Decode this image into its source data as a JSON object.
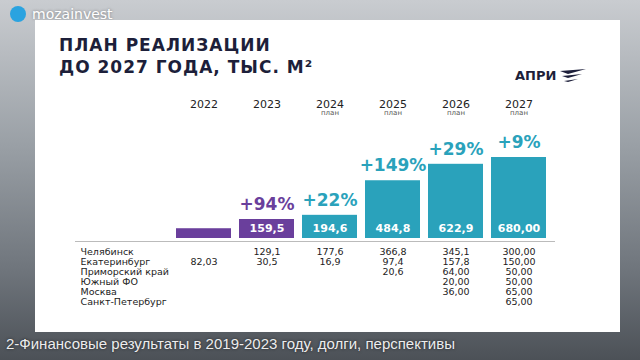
{
  "chart_data": {
    "type": "bar",
    "title": "ПЛАН РЕАЛИЗАЦИИ\nДО 2027 ГОДА, ТЫС. М²",
    "logo": "АПРИ",
    "watermark": "mozainvest",
    "caption": "2-Финансовые результаты в 2019-2023 году, долги, перспективы",
    "categories": [
      "2022",
      "2023",
      "2024",
      "2025",
      "2026",
      "2027"
    ],
    "period_notes": [
      null,
      null,
      "план",
      "план",
      "план",
      "план"
    ],
    "values": [
      82.03,
      159.5,
      194.6,
      484.8,
      622.9,
      680.0
    ],
    "value_labels": [
      null,
      "159,5",
      "194,6",
      "484,8",
      "622,9",
      "680,00"
    ],
    "growth_labels": [
      null,
      "+94%",
      "+22%",
      "+149%",
      "+29%",
      "+9%"
    ],
    "colors": [
      "#6a3f9c",
      "#6a3f9c",
      "#2aa2bb",
      "#2aa2bb",
      "#2aa2bb",
      "#2aa2bb"
    ],
    "ylim": [
      0,
      680
    ],
    "tick_labels": false,
    "grid": false,
    "data_labels": true,
    "table": {
      "rows": [
        {
          "name": "Челябинск",
          "values": [
            null,
            "129,1",
            "177,6",
            "366,8",
            "345,1",
            "300,00"
          ]
        },
        {
          "name": "Екатеринбург",
          "values": [
            "82,03",
            "30,5",
            "16,9",
            "97,4",
            "157,8",
            "150,00"
          ]
        },
        {
          "name": "Приморский край",
          "values": [
            null,
            null,
            null,
            "20,6",
            "64,00",
            "50,00"
          ]
        },
        {
          "name": "Южный ФО",
          "values": [
            null,
            null,
            null,
            null,
            "20,00",
            "50,00"
          ]
        },
        {
          "name": "Москва",
          "values": [
            null,
            null,
            null,
            null,
            "36,00",
            "65,00"
          ]
        },
        {
          "name": "Санкт-Петербург",
          "values": [
            null,
            null,
            null,
            null,
            null,
            "65,00"
          ]
        }
      ]
    }
  }
}
